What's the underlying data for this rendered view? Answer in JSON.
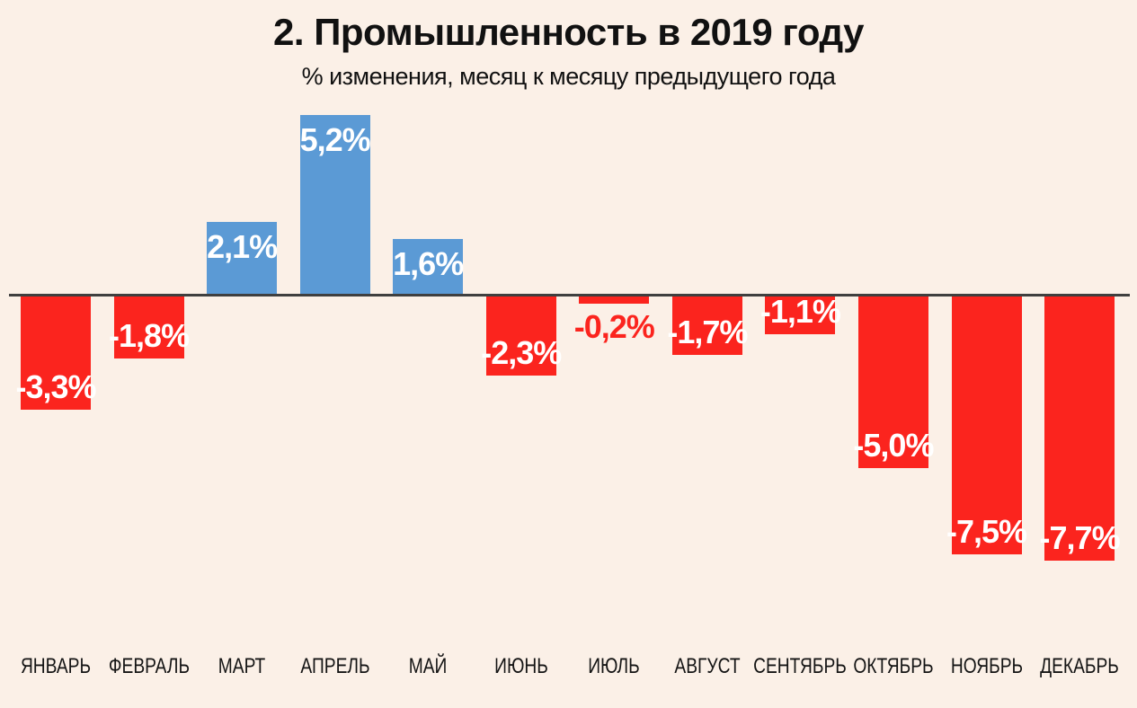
{
  "chart": {
    "title": "2. Промышленность в 2019 году",
    "subtitle": "% изменения, месяц к месяцу предыдущего года"
  },
  "chart_data": {
    "type": "bar",
    "title": "2. Промышленность в 2019 году",
    "subtitle": "% изменения, месяц к месяцу предыдущего года",
    "xlabel": "",
    "ylabel": "% изменения, месяц к месяцу предыдущего года",
    "categories": [
      "ЯНВАРЬ",
      "ФЕВРАЛЬ",
      "МАРТ",
      "АПРЕЛЬ",
      "МАЙ",
      "ИЮНЬ",
      "ИЮЛЬ",
      "АВГУСТ",
      "СЕНТЯБРЬ",
      "ОКТЯБРЬ",
      "НОЯБРЬ",
      "ДЕКАБРЬ"
    ],
    "values": [
      -3.3,
      -1.8,
      2.1,
      5.2,
      1.6,
      -2.3,
      -0.2,
      -1.7,
      -1.1,
      -5.0,
      -7.5,
      -7.7
    ],
    "value_labels": [
      "-3,3%",
      "-1,8%",
      "2,1%",
      "5,2%",
      "1,6%",
      "-2,3%",
      "-0,2%",
      "-1,7%",
      "-1,1%",
      "-5,0%",
      "-7,5%",
      "-7,7%"
    ],
    "ylim": [
      -8.5,
      6
    ],
    "grid": false,
    "legend": "none",
    "baseline": 0,
    "colors": {
      "background": "#FBF0E7",
      "positive_bar": "#5B9AD5",
      "negative_bar": "#FB241E",
      "axis_line": "#3F3F3F",
      "inside_label": "#FFFFFF",
      "title_text": "#111111"
    }
  }
}
